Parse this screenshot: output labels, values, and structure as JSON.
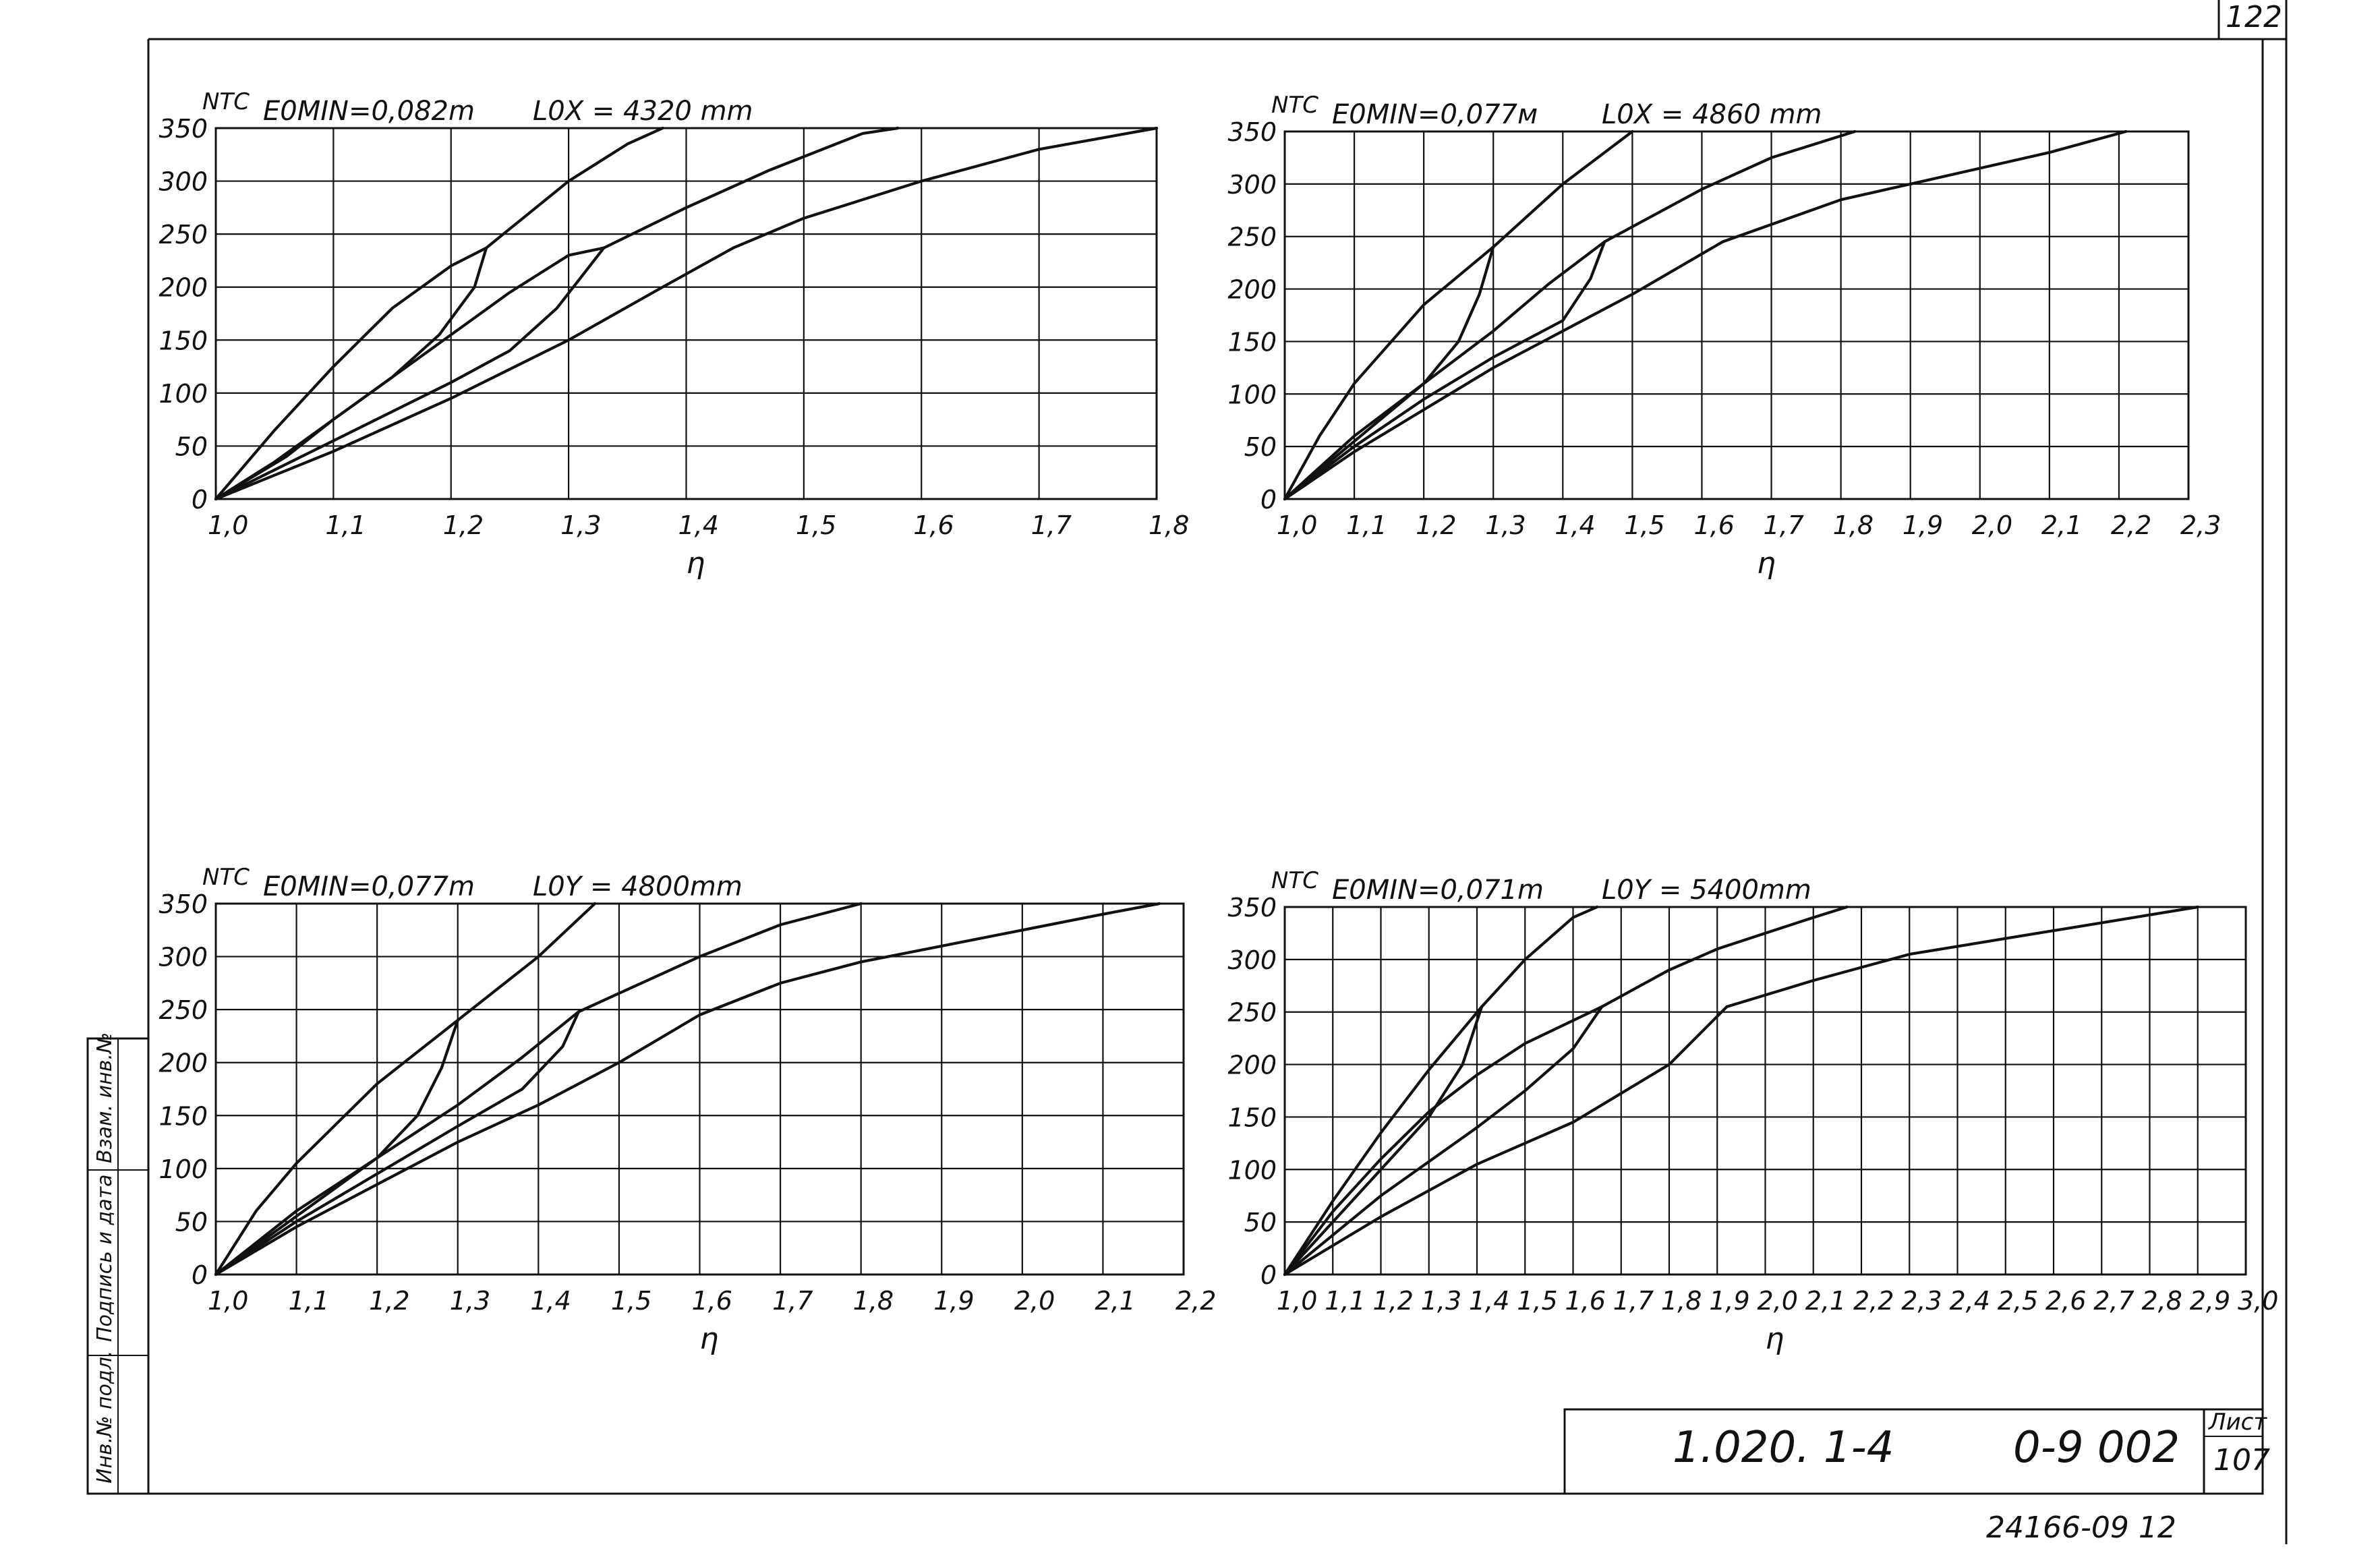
{
  "page": {
    "sheet_number_top": "122",
    "archive_number": "24166-09 12"
  },
  "title_block": {
    "code": "1.020. 1-4",
    "series": "0-9 002",
    "sheet_label": "Лист",
    "sheet_value": "107"
  },
  "side_stamp": {
    "inv_no": "Инв.№ подл.",
    "sign_date": "Подпись и дата",
    "replace_inv": "Взам. инв.№"
  },
  "chart_data": [
    {
      "type": "line",
      "ylabel": "NTC",
      "xlabel": "η",
      "param_e": "E0MIN=0,082m",
      "param_l": "L0X = 4320 mm",
      "x_ticks": [
        "1,0",
        "1,1",
        "1,2",
        "1,3",
        "1,4",
        "1,5",
        "1,6",
        "1,7",
        "1,8"
      ],
      "y_ticks": [
        "0",
        "50",
        "100",
        "150",
        "200",
        "250",
        "300",
        "350"
      ],
      "xlim": [
        1.0,
        1.8
      ],
      "ylim": [
        0,
        350
      ],
      "series": [
        {
          "x": [
            1.0,
            1.05,
            1.1,
            1.15,
            1.2,
            1.23
          ],
          "y": [
            0,
            65,
            125,
            180,
            220,
            237
          ]
        },
        {
          "x": [
            1.23,
            1.3,
            1.35,
            1.38
          ],
          "y": [
            237,
            300,
            335,
            350
          ]
        },
        {
          "x": [
            1.0,
            1.06,
            1.1,
            1.15,
            1.2,
            1.25,
            1.3,
            1.33
          ],
          "y": [
            0,
            40,
            75,
            115,
            155,
            195,
            230,
            237
          ]
        },
        {
          "x": [
            1.33,
            1.4,
            1.47,
            1.55,
            1.58
          ],
          "y": [
            237,
            275,
            310,
            345,
            350
          ]
        },
        {
          "x": [
            1.0,
            1.1,
            1.2,
            1.3,
            1.38,
            1.44
          ],
          "y": [
            0,
            45,
            95,
            150,
            200,
            237
          ]
        },
        {
          "x": [
            1.44,
            1.5,
            1.6,
            1.7,
            1.8
          ],
          "y": [
            237,
            265,
            300,
            330,
            350
          ]
        },
        {
          "x": [
            1.0,
            1.05,
            1.1,
            1.15,
            1.19,
            1.22,
            1.23
          ],
          "y": [
            0,
            35,
            75,
            115,
            155,
            200,
            237
          ]
        },
        {
          "x": [
            1.0,
            1.1,
            1.2,
            1.25,
            1.29,
            1.33
          ],
          "y": [
            0,
            55,
            110,
            140,
            180,
            237
          ]
        }
      ]
    },
    {
      "type": "line",
      "ylabel": "NTC",
      "xlabel": "η",
      "param_e": "E0MIN=0,077м",
      "param_l": "L0X = 4860 mm",
      "x_ticks": [
        "1,0",
        "1,1",
        "1,2",
        "1,3",
        "1,4",
        "1,5",
        "1,6",
        "1,7",
        "1,8",
        "1,9",
        "2,0",
        "2,1",
        "2,2",
        "2,3"
      ],
      "y_ticks": [
        "0",
        "50",
        "100",
        "150",
        "200",
        "250",
        "300",
        "350"
      ],
      "xlim": [
        1.0,
        2.3
      ],
      "ylim": [
        0,
        350
      ],
      "series": [
        {
          "x": [
            1.0,
            1.05,
            1.1,
            1.2,
            1.3
          ],
          "y": [
            0,
            60,
            110,
            185,
            240
          ]
        },
        {
          "x": [
            1.3,
            1.4,
            1.5
          ],
          "y": [
            240,
            300,
            350
          ]
        },
        {
          "x": [
            1.0,
            1.1,
            1.2,
            1.3,
            1.38,
            1.46
          ],
          "y": [
            0,
            60,
            110,
            160,
            205,
            245
          ]
        },
        {
          "x": [
            1.46,
            1.6,
            1.7,
            1.82
          ],
          "y": [
            245,
            295,
            325,
            350
          ]
        },
        {
          "x": [
            1.0,
            1.1,
            1.2,
            1.3,
            1.4,
            1.5,
            1.63
          ],
          "y": [
            0,
            45,
            85,
            125,
            160,
            195,
            245
          ]
        },
        {
          "x": [
            1.63,
            1.8,
            1.9,
            2.0,
            2.1,
            2.21
          ],
          "y": [
            245,
            285,
            300,
            315,
            330,
            350
          ]
        },
        {
          "x": [
            1.0,
            1.1,
            1.2,
            1.25,
            1.28,
            1.3
          ],
          "y": [
            0,
            55,
            110,
            150,
            195,
            240
          ]
        },
        {
          "x": [
            1.0,
            1.1,
            1.2,
            1.3,
            1.4,
            1.44,
            1.46
          ],
          "y": [
            0,
            50,
            95,
            135,
            170,
            210,
            245
          ]
        }
      ]
    },
    {
      "type": "line",
      "ylabel": "NTC",
      "xlabel": "η",
      "param_e": "E0MIN=0,077m",
      "param_l": "L0Y = 4800mm",
      "x_ticks": [
        "1,0",
        "1,1",
        "1,2",
        "1,3",
        "1,4",
        "1,5",
        "1,6",
        "1,7",
        "1,8",
        "1,9",
        "2,0",
        "2,1",
        "2,2"
      ],
      "y_ticks": [
        "0",
        "50",
        "100",
        "150",
        "200",
        "250",
        "300",
        "350"
      ],
      "xlim": [
        1.0,
        2.2
      ],
      "ylim": [
        0,
        350
      ],
      "series": [
        {
          "x": [
            1.0,
            1.05,
            1.1,
            1.2,
            1.3
          ],
          "y": [
            0,
            60,
            105,
            180,
            240
          ]
        },
        {
          "x": [
            1.3,
            1.4,
            1.47
          ],
          "y": [
            240,
            300,
            350
          ]
        },
        {
          "x": [
            1.0,
            1.1,
            1.2,
            1.3,
            1.38,
            1.45
          ],
          "y": [
            0,
            60,
            110,
            160,
            205,
            248
          ]
        },
        {
          "x": [
            1.45,
            1.6,
            1.7,
            1.8
          ],
          "y": [
            248,
            300,
            330,
            350
          ]
        },
        {
          "x": [
            1.0,
            1.1,
            1.2,
            1.3,
            1.4,
            1.5,
            1.6
          ],
          "y": [
            0,
            45,
            85,
            125,
            160,
            200,
            245
          ]
        },
        {
          "x": [
            1.6,
            1.7,
            1.8,
            1.9,
            2.0,
            2.1,
            2.17
          ],
          "y": [
            245,
            275,
            295,
            310,
            325,
            340,
            350
          ]
        },
        {
          "x": [
            1.0,
            1.1,
            1.2,
            1.25,
            1.28,
            1.3
          ],
          "y": [
            0,
            55,
            110,
            150,
            195,
            240
          ]
        },
        {
          "x": [
            1.0,
            1.1,
            1.2,
            1.3,
            1.38,
            1.43,
            1.45
          ],
          "y": [
            0,
            50,
            95,
            140,
            175,
            215,
            248
          ]
        }
      ]
    },
    {
      "type": "line",
      "ylabel": "NTC",
      "xlabel": "η",
      "param_e": "E0MIN=0,071m",
      "param_l": "L0Y = 5400mm",
      "x_ticks": [
        "1,0",
        "1,1",
        "1,2",
        "1,3",
        "1,4",
        "1,5",
        "1,6",
        "1,7",
        "1,8",
        "1,9",
        "2,0",
        "2,1",
        "2,2",
        "2,3",
        "2,4",
        "2,5",
        "2,6",
        "2,7",
        "2,8",
        "2,9",
        "3,0"
      ],
      "y_ticks": [
        "0",
        "50",
        "100",
        "150",
        "200",
        "250",
        "300",
        "350"
      ],
      "xlim": [
        1.0,
        3.0
      ],
      "ylim": [
        0,
        350
      ],
      "series": [
        {
          "x": [
            1.0,
            1.1,
            1.2,
            1.3,
            1.41
          ],
          "y": [
            0,
            70,
            135,
            195,
            255
          ]
        },
        {
          "x": [
            1.41,
            1.5,
            1.6,
            1.65
          ],
          "y": [
            255,
            300,
            340,
            350
          ]
        },
        {
          "x": [
            1.0,
            1.1,
            1.2,
            1.3,
            1.4,
            1.5,
            1.66
          ],
          "y": [
            0,
            60,
            110,
            155,
            190,
            220,
            255
          ]
        },
        {
          "x": [
            1.66,
            1.8,
            1.9,
            2.0,
            2.1,
            2.17
          ],
          "y": [
            255,
            290,
            310,
            325,
            340,
            350
          ]
        },
        {
          "x": [
            1.0,
            1.2,
            1.4,
            1.6,
            1.8,
            1.92
          ],
          "y": [
            0,
            55,
            105,
            145,
            200,
            255
          ]
        },
        {
          "x": [
            1.92,
            2.1,
            2.3,
            2.5,
            2.7,
            2.9
          ],
          "y": [
            255,
            280,
            305,
            320,
            335,
            350
          ]
        },
        {
          "x": [
            1.0,
            1.1,
            1.2,
            1.3,
            1.37,
            1.41
          ],
          "y": [
            0,
            50,
            100,
            150,
            200,
            255
          ]
        },
        {
          "x": [
            1.0,
            1.2,
            1.4,
            1.5,
            1.6,
            1.66
          ],
          "y": [
            0,
            75,
            140,
            175,
            215,
            255
          ]
        }
      ]
    }
  ]
}
